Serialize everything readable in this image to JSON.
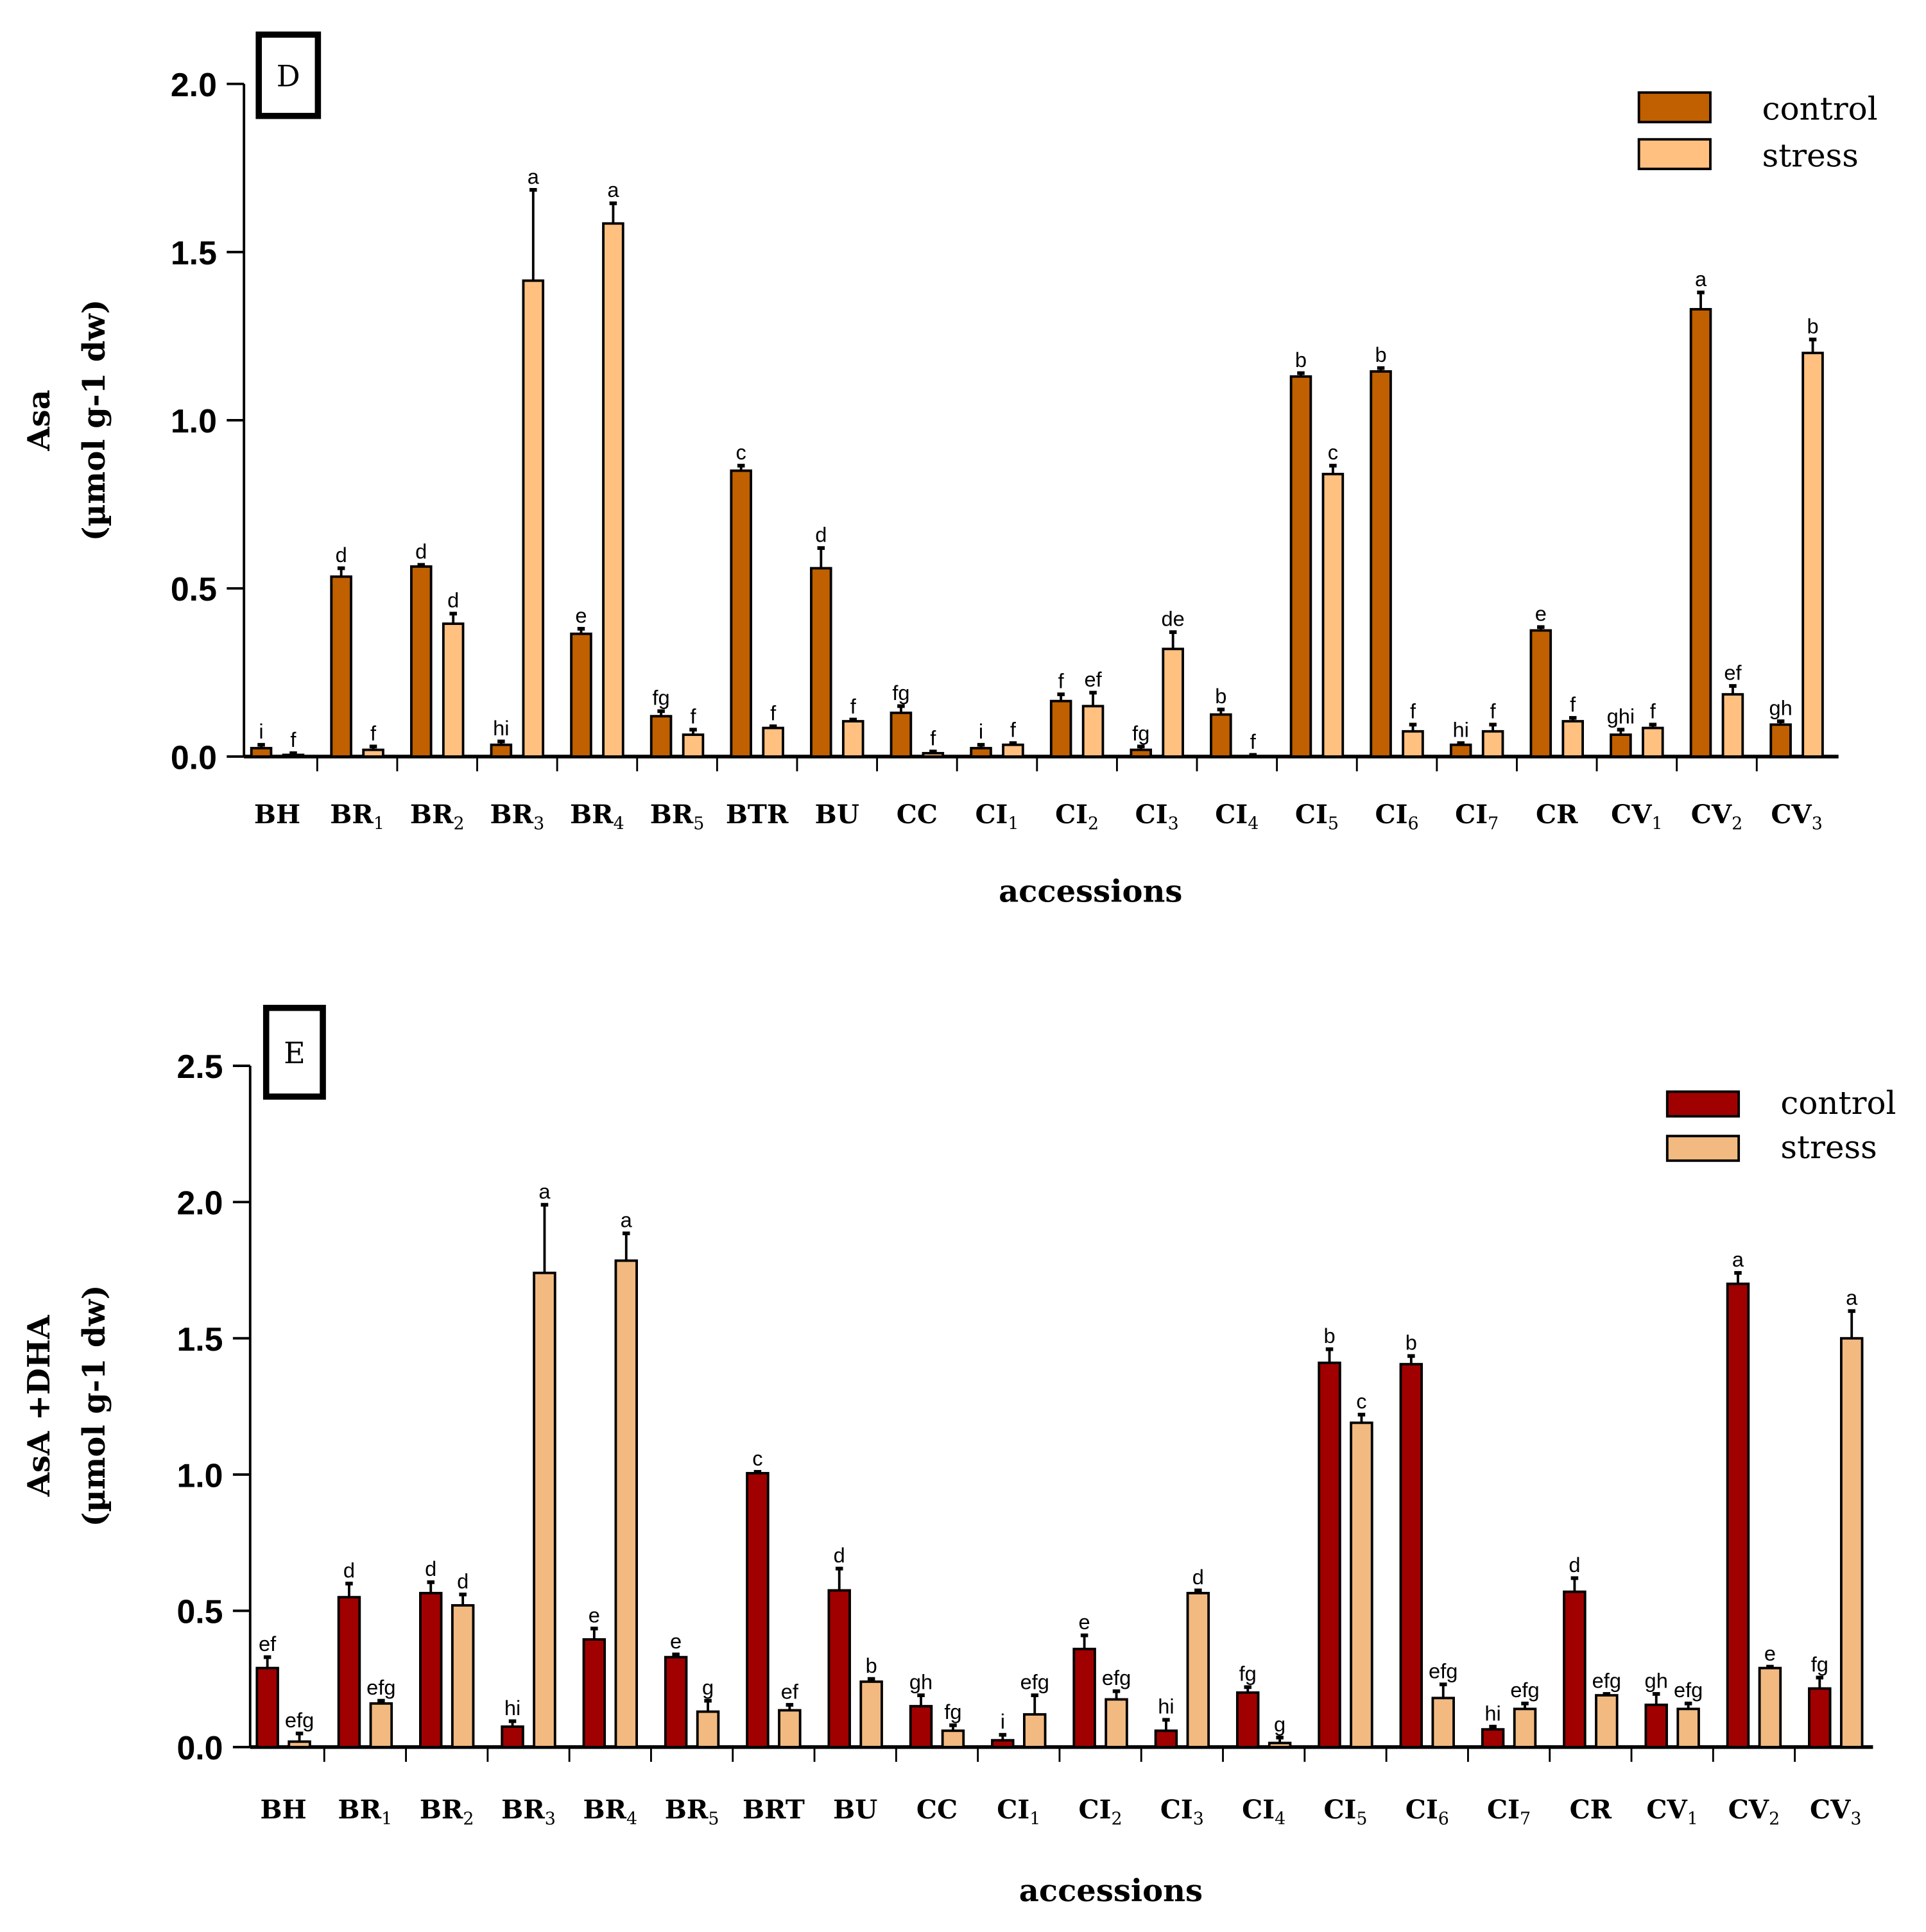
{
  "chart_data": [
    {
      "type": "bar",
      "panel_label": "D",
      "xlabel": "accessions",
      "ylabel_line1": "Asa",
      "ylabel_line2": "(µmol g-1 dw)",
      "ylim": [
        0,
        2.0
      ],
      "yticks": [
        "0.0",
        "0.5",
        "1.0",
        "1.5",
        "2.0"
      ],
      "categories": [
        [
          "BH",
          ""
        ],
        [
          "BR",
          "1"
        ],
        [
          "BR",
          "2"
        ],
        [
          "BR",
          "3"
        ],
        [
          "BR",
          "4"
        ],
        [
          "BR",
          "5"
        ],
        [
          "BTR",
          ""
        ],
        [
          "BU",
          ""
        ],
        [
          "CC",
          ""
        ],
        [
          "CI",
          "1"
        ],
        [
          "CI",
          "2"
        ],
        [
          "CI",
          "3"
        ],
        [
          "CI",
          "4"
        ],
        [
          "CI",
          "5"
        ],
        [
          "CI",
          "6"
        ],
        [
          "CI",
          "7"
        ],
        [
          "CR",
          ""
        ],
        [
          "CV",
          "1"
        ],
        [
          "CV",
          "2"
        ],
        [
          "CV",
          "3"
        ]
      ],
      "colors": {
        "control": "#C06000",
        "stress": "#FFC080"
      },
      "series": [
        {
          "name": "control",
          "values": [
            0.025,
            0.535,
            0.565,
            0.035,
            0.365,
            0.12,
            0.85,
            0.56,
            0.13,
            0.025,
            0.165,
            0.02,
            0.125,
            1.13,
            1.145,
            0.035,
            0.375,
            0.065,
            1.33,
            0.095
          ],
          "errors": [
            0.01,
            0.025,
            0.005,
            0.01,
            0.015,
            0.015,
            0.015,
            0.06,
            0.02,
            0.01,
            0.02,
            0.01,
            0.015,
            0.01,
            0.01,
            0.005,
            0.01,
            0.015,
            0.05,
            0.01
          ],
          "letters": [
            "i",
            "d",
            "d",
            "hi",
            "e",
            "fg",
            "c",
            "d",
            "fg",
            "i",
            "f",
            "fg",
            "b",
            "b",
            "b",
            "hi",
            "e",
            "ghi",
            "a",
            "gh"
          ]
        },
        {
          "name": "stress",
          "values": [
            0.005,
            0.02,
            0.395,
            1.415,
            1.585,
            0.065,
            0.085,
            0.105,
            0.01,
            0.035,
            0.15,
            0.32,
            0.0,
            0.84,
            0.075,
            0.075,
            0.105,
            0.085,
            0.185,
            1.2
          ],
          "errors": [
            0.005,
            0.01,
            0.03,
            0.27,
            0.06,
            0.015,
            0.005,
            0.005,
            0.005,
            0.005,
            0.04,
            0.05,
            0.005,
            0.025,
            0.02,
            0.02,
            0.01,
            0.01,
            0.025,
            0.04
          ],
          "letters": [
            "f",
            "f",
            "d",
            "a",
            "a",
            "f",
            "f",
            "f",
            "f",
            "f",
            "ef",
            "de",
            "f",
            "c",
            "f",
            "f",
            "f",
            "f",
            "ef",
            "b"
          ]
        }
      ]
    },
    {
      "type": "bar",
      "panel_label": "E",
      "xlabel": "accessions",
      "ylabel_line1": "AsA +DHA",
      "ylabel_line2": "(µmol g-1 dw)",
      "ylim": [
        0,
        2.5
      ],
      "yticks": [
        "0.0",
        "0.5",
        "1.0",
        "1.5",
        "2.0",
        "2.5"
      ],
      "categories": [
        [
          "BH",
          ""
        ],
        [
          "BR",
          "1"
        ],
        [
          "BR",
          "2"
        ],
        [
          "BR",
          "3"
        ],
        [
          "BR",
          "4"
        ],
        [
          "BR",
          "5"
        ],
        [
          "BRT",
          ""
        ],
        [
          "BU",
          ""
        ],
        [
          "CC",
          ""
        ],
        [
          "CI",
          "1"
        ],
        [
          "CI",
          "2"
        ],
        [
          "CI",
          "3"
        ],
        [
          "CI",
          "4"
        ],
        [
          "CI",
          "5"
        ],
        [
          "CI",
          "6"
        ],
        [
          "CI",
          "7"
        ],
        [
          "CR",
          ""
        ],
        [
          "CV",
          "1"
        ],
        [
          "CV",
          "2"
        ],
        [
          "CV",
          "3"
        ]
      ],
      "colors": {
        "control": "#A00000",
        "stress": "#F2BA80"
      },
      "series": [
        {
          "name": "control",
          "values": [
            0.29,
            0.55,
            0.565,
            0.075,
            0.395,
            0.33,
            1.005,
            0.575,
            0.15,
            0.025,
            0.36,
            0.06,
            0.2,
            1.41,
            1.405,
            0.065,
            0.57,
            0.155,
            1.7,
            0.215
          ],
          "errors": [
            0.04,
            0.05,
            0.04,
            0.02,
            0.04,
            0.01,
            0.005,
            0.08,
            0.04,
            0.02,
            0.05,
            0.04,
            0.02,
            0.05,
            0.03,
            0.01,
            0.05,
            0.04,
            0.04,
            0.04
          ],
          "letters": [
            "ef",
            "d",
            "d",
            "hi",
            "e",
            "e",
            "c",
            "d",
            "gh",
            "i",
            "e",
            "hi",
            "fg",
            "b",
            "b",
            "hi",
            "d",
            "gh",
            "a",
            "fg"
          ]
        },
        {
          "name": "stress",
          "values": [
            0.02,
            0.16,
            0.52,
            1.74,
            1.785,
            0.13,
            0.135,
            0.24,
            0.06,
            0.12,
            0.175,
            0.565,
            0.015,
            1.19,
            0.18,
            0.14,
            0.19,
            0.14,
            0.29,
            1.5
          ],
          "errors": [
            0.03,
            0.01,
            0.04,
            0.25,
            0.1,
            0.04,
            0.02,
            0.01,
            0.02,
            0.07,
            0.03,
            0.01,
            0.02,
            0.03,
            0.05,
            0.02,
            0.005,
            0.02,
            0.005,
            0.1
          ],
          "letters": [
            "efg",
            "efg",
            "d",
            "a",
            "a",
            "g",
            "ef",
            "b",
            "fg",
            "efg",
            "efg",
            "d",
            "g",
            "c",
            "efg",
            "efg",
            "efg",
            "efg",
            "e",
            "a"
          ]
        }
      ]
    }
  ]
}
